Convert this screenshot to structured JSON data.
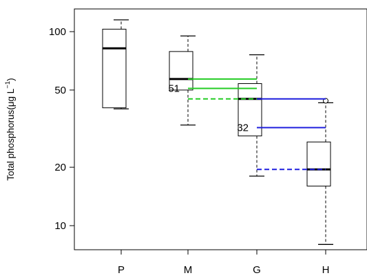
{
  "chart_data": {
    "type": "box",
    "ylabel": "Total phosphorus(μg L",
    "ylabel_superscript": "−1",
    "ylabel_suffix": ")",
    "y_scale": "log",
    "ylim": [
      7,
      130
    ],
    "y_ticks": [
      10,
      20,
      50,
      100
    ],
    "categories": [
      "P",
      "M",
      "G",
      "H"
    ],
    "boxes": [
      {
        "category": "P",
        "whisker_low": 40,
        "q1": 40.5,
        "median": 82,
        "q3": 103,
        "whisker_high": 115
      },
      {
        "category": "M",
        "whisker_low": 33,
        "q1": 50,
        "median": 57,
        "q3": 79,
        "whisker_high": 95
      },
      {
        "category": "G",
        "whisker_low": 18,
        "q1": 29,
        "median": 45,
        "q3": 54,
        "whisker_high": 76
      },
      {
        "category": "H",
        "whisker_low": 8,
        "q1": 16,
        "median": 19.5,
        "q3": 27,
        "whisker_high": 43
      }
    ],
    "outliers": [
      {
        "category": "H",
        "value": 44
      }
    ],
    "reference_lines": [
      {
        "color": "#22cc22",
        "style": "solid",
        "from": "M",
        "to": "G",
        "value": 57
      },
      {
        "color": "#22cc22",
        "style": "solid",
        "from": "M",
        "to": "G",
        "value": 51
      },
      {
        "color": "#22cc22",
        "style": "dashed",
        "from": "M",
        "to": "G",
        "value": 45
      },
      {
        "color": "#1c1cdd",
        "style": "solid",
        "from": "G",
        "to": "H",
        "value": 45
      },
      {
        "color": "#1c1cdd",
        "style": "solid",
        "from": "G",
        "to": "H",
        "value": 32
      },
      {
        "color": "#1c1cdd",
        "style": "dashed",
        "from": "G",
        "to": "H",
        "value": 19.5
      }
    ],
    "annotations": [
      {
        "text": "51",
        "category": "M",
        "value": 51
      },
      {
        "text": "32",
        "category": "G",
        "value": 32
      }
    ]
  }
}
